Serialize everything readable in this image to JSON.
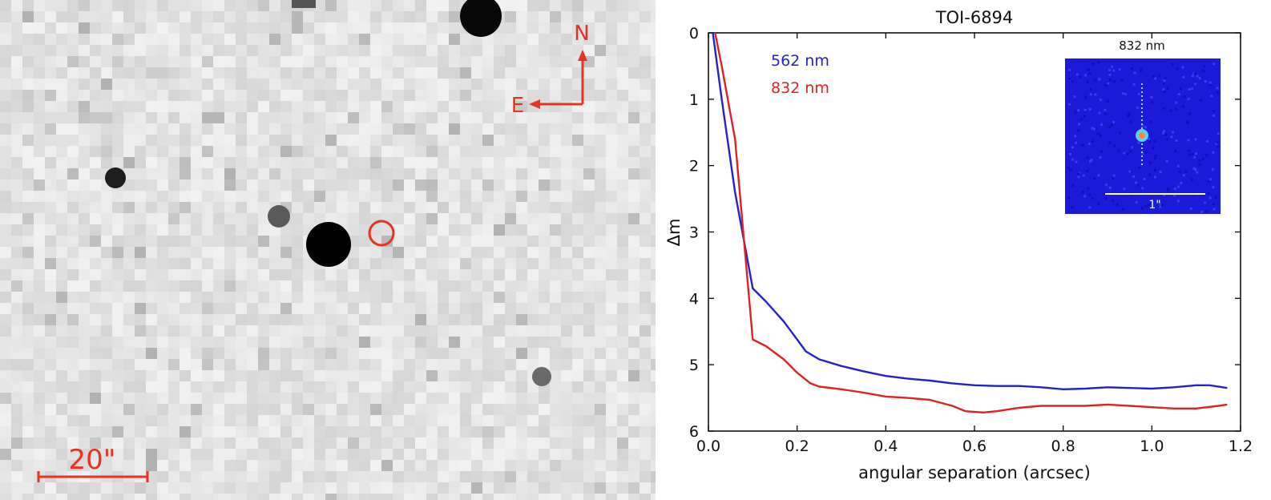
{
  "sky_image": {
    "compass": {
      "north": "N",
      "east": "E"
    },
    "scale_bar": "20\""
  },
  "chart_data": {
    "type": "line",
    "title": "TOI-6894",
    "xlabel": "angular separation (arcsec)",
    "ylabel": "Δm",
    "xlim": [
      0.0,
      1.2
    ],
    "ylim": [
      6,
      0
    ],
    "y_inverted": true,
    "x_ticks": [
      "0.0",
      "0.2",
      "0.4",
      "0.6",
      "0.8",
      "1.0",
      "1.2"
    ],
    "y_ticks": [
      "0",
      "1",
      "2",
      "3",
      "4",
      "5",
      "6"
    ],
    "grid": false,
    "legend": "top-left",
    "series": [
      {
        "name": "562 nm",
        "color": "#2222cc",
        "x": [
          0.01,
          0.03,
          0.06,
          0.1,
          0.13,
          0.17,
          0.2,
          0.22,
          0.25,
          0.3,
          0.35,
          0.4,
          0.45,
          0.5,
          0.55,
          0.6,
          0.65,
          0.7,
          0.75,
          0.8,
          0.85,
          0.9,
          0.95,
          1.0,
          1.05,
          1.1,
          1.13,
          1.17
        ],
        "y": [
          0.0,
          1.0,
          2.4,
          3.85,
          4.05,
          4.35,
          4.62,
          4.8,
          4.92,
          5.02,
          5.1,
          5.17,
          5.21,
          5.24,
          5.28,
          5.31,
          5.32,
          5.32,
          5.34,
          5.37,
          5.36,
          5.34,
          5.35,
          5.36,
          5.34,
          5.31,
          5.31,
          5.35
        ]
      },
      {
        "name": "832 nm",
        "color": "#dd2222",
        "x": [
          0.015,
          0.03,
          0.06,
          0.1,
          0.13,
          0.17,
          0.2,
          0.23,
          0.25,
          0.3,
          0.35,
          0.4,
          0.45,
          0.5,
          0.55,
          0.58,
          0.62,
          0.65,
          0.7,
          0.75,
          0.8,
          0.85,
          0.9,
          0.95,
          1.0,
          1.05,
          1.1,
          1.15,
          1.17
        ],
        "y": [
          0.0,
          0.5,
          1.6,
          4.62,
          4.72,
          4.92,
          5.12,
          5.28,
          5.33,
          5.37,
          5.42,
          5.48,
          5.5,
          5.53,
          5.62,
          5.7,
          5.72,
          5.7,
          5.65,
          5.62,
          5.62,
          5.62,
          5.6,
          5.62,
          5.64,
          5.66,
          5.66,
          5.62,
          5.6
        ]
      }
    ],
    "inset": {
      "title": "832 nm",
      "scale_label": "1\""
    }
  }
}
